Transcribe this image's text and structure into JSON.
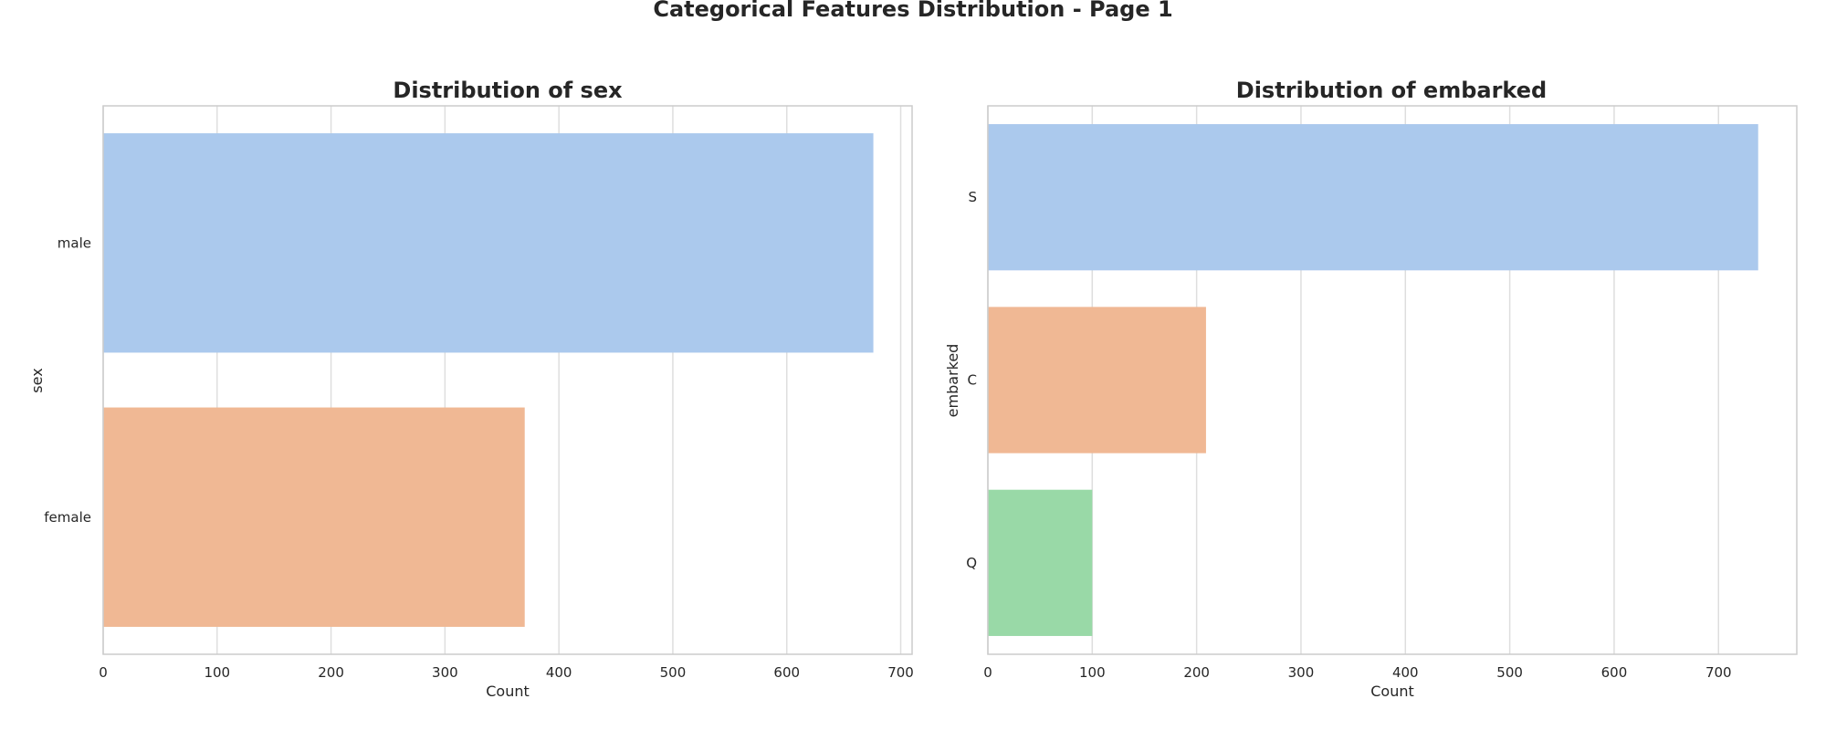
{
  "figure": {
    "suptitle": "Categorical Features Distribution - Page 1"
  },
  "chart_data": [
    {
      "type": "bar",
      "orientation": "horizontal",
      "title": "Distribution of sex",
      "xlabel": "Count",
      "ylabel": "sex",
      "categories": [
        "male",
        "female"
      ],
      "values": [
        676,
        370
      ],
      "colors": [
        "#abc9ed",
        "#f0b894"
      ],
      "xlim": [
        0,
        710
      ],
      "xticks": [
        0,
        100,
        200,
        300,
        400,
        500,
        600,
        700
      ],
      "grid": "vertical"
    },
    {
      "type": "bar",
      "orientation": "horizontal",
      "title": "Distribution of embarked",
      "xlabel": "Count",
      "ylabel": "embarked",
      "categories": [
        "S",
        "C",
        "Q"
      ],
      "values": [
        738,
        209,
        100
      ],
      "colors": [
        "#abc9ed",
        "#f0b894",
        "#99d9a7"
      ],
      "xlim": [
        0,
        775
      ],
      "xticks": [
        0,
        100,
        200,
        300,
        400,
        500,
        600,
        700
      ],
      "grid": "vertical"
    }
  ]
}
